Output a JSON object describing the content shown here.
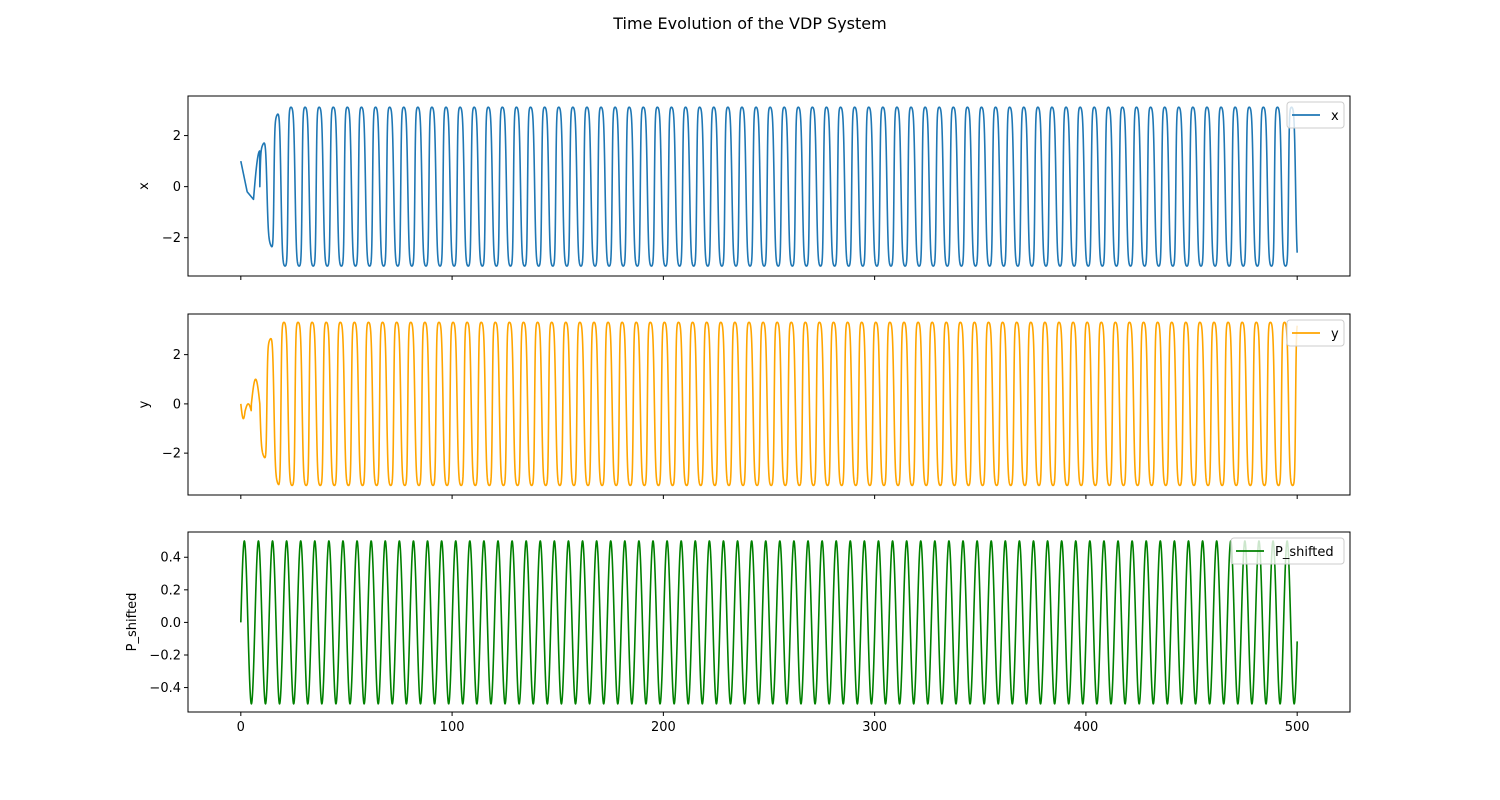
{
  "figure": {
    "title": "Time Evolution of the VDP System"
  },
  "chart_data": [
    {
      "type": "line",
      "shared_x": true,
      "xlabel": "",
      "ylabel": "x",
      "xlim": [
        -25,
        525
      ],
      "ylim": [
        -3.5,
        3.55
      ],
      "xticks": [
        0,
        100,
        200,
        300,
        400,
        500
      ],
      "xtick_labels": [],
      "yticks": [
        -2,
        0,
        2
      ],
      "ytick_labels": [
        "−2",
        "0",
        "2"
      ],
      "grid": false,
      "legend_position": "upper right",
      "series": [
        {
          "name": "x",
          "color": "#1f77b4",
          "t_range": [
            0,
            500
          ],
          "initial": 1.0,
          "amplitude": 3.1,
          "period": 6.67,
          "shape": "relaxation oscillation; transient until t≈20 (peaks 1.4, -2.1, 2.7), then steady amplitude ≈3.1"
        }
      ]
    },
    {
      "type": "line",
      "shared_x": true,
      "xlabel": "",
      "ylabel": "y",
      "xlim": [
        -25,
        525
      ],
      "ylim": [
        -3.7,
        3.65
      ],
      "xticks": [
        0,
        100,
        200,
        300,
        400,
        500
      ],
      "xtick_labels": [],
      "yticks": [
        -2,
        0,
        2
      ],
      "ytick_labels": [
        "−2",
        "0",
        "2"
      ],
      "grid": false,
      "legend_position": "upper right",
      "series": [
        {
          "name": "y",
          "color": "#ffa500",
          "t_range": [
            0,
            500
          ],
          "initial": 0.0,
          "amplitude": 3.3,
          "period": 6.67,
          "shape": "oscillation; transient until t≈20 (values -0.6, 1.0, -1.9, 2.6), then amplitude ≈3.3"
        }
      ]
    },
    {
      "type": "line",
      "shared_x": true,
      "xlabel": "",
      "ylabel": "P_shifted",
      "xlim": [
        -25,
        525
      ],
      "ylim": [
        -0.55,
        0.555
      ],
      "xticks": [
        0,
        100,
        200,
        300,
        400,
        500
      ],
      "xtick_labels": [
        "0",
        "100",
        "200",
        "300",
        "400",
        "500"
      ],
      "yticks": [
        -0.4,
        -0.2,
        0.0,
        0.2,
        0.4
      ],
      "ytick_labels": [
        "−0.4",
        "−0.2",
        "0.0",
        "0.2",
        "0.4"
      ],
      "grid": false,
      "legend_position": "upper right",
      "series": [
        {
          "name": "P_shifted",
          "color": "#008000",
          "t_range": [
            0,
            500
          ],
          "initial": 0.0,
          "amplitude": 0.5,
          "period": 6.67,
          "shape": "oscillation between -0.5 and 0.5 with occasional spikes"
        }
      ]
    }
  ]
}
